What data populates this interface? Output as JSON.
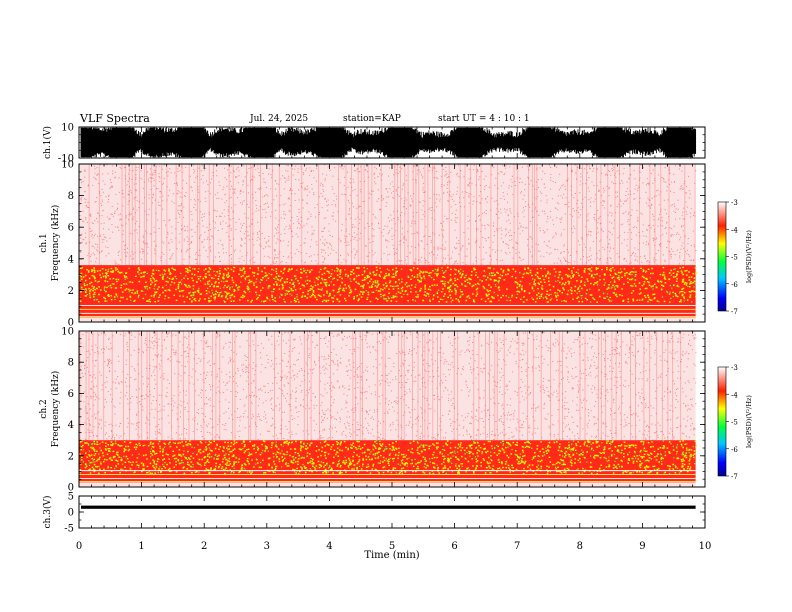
{
  "header": {
    "title": "VLF Spectra",
    "date": "Jul. 24, 2025",
    "station": "station=KAP",
    "start": "start UT =  4 : 10 : 1"
  },
  "chart_data": [
    {
      "type": "line",
      "name": "ch1-waveform",
      "ylabel": "ch.1(V)",
      "ylim": [
        -10,
        10
      ],
      "yticks": [
        "10",
        "-10"
      ],
      "xlim": [
        0,
        10
      ]
    },
    {
      "type": "heatmap",
      "name": "ch1-spectrogram",
      "ylabel_line1": "ch.1",
      "ylabel_line2": "Frequency (kHz)",
      "ylim": [
        0,
        10
      ],
      "yticks": [
        "0",
        "2",
        "4",
        "6",
        "8",
        "10"
      ],
      "xlim": [
        0,
        10
      ],
      "data_end_min": 9.85,
      "colorbar": {
        "label": "log(PSD)(V²/Hz)",
        "range": [
          -7,
          -3
        ],
        "ticks": [
          "-3",
          "-4",
          "-5",
          "-6",
          "-7"
        ]
      }
    },
    {
      "type": "heatmap",
      "name": "ch2-spectrogram",
      "ylabel_line1": "ch.2",
      "ylabel_line2": "Frequency (kHz)",
      "ylim": [
        0,
        10
      ],
      "yticks": [
        "0",
        "2",
        "4",
        "6",
        "8",
        "10"
      ],
      "xlim": [
        0,
        10
      ],
      "data_end_min": 9.85,
      "colorbar": {
        "label": "log(PSD)(V²/Hz)",
        "range": [
          -7,
          -3
        ],
        "ticks": [
          "-3",
          "-4",
          "-5",
          "-6",
          "-7"
        ]
      }
    },
    {
      "type": "line",
      "name": "ch3-waveform",
      "ylabel": "ch.3(V)",
      "ylim": [
        -5,
        5
      ],
      "yticks": [
        "5",
        "0",
        "-5"
      ],
      "xlim": [
        0,
        10
      ],
      "xlabel": "Time (min)",
      "xticks": [
        "0",
        "1",
        "2",
        "3",
        "4",
        "5",
        "6",
        "7",
        "8",
        "9",
        "10"
      ]
    }
  ]
}
